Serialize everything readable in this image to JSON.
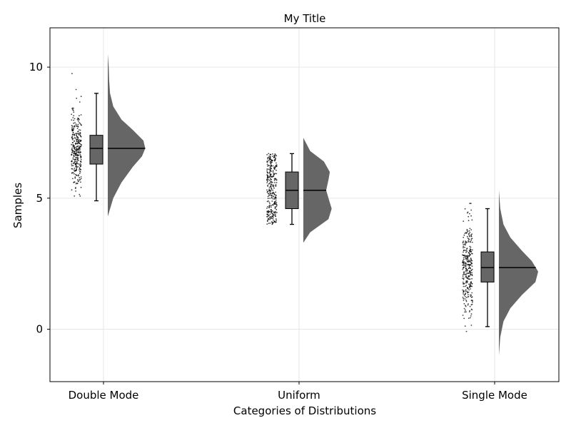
{
  "chart_data": {
    "type": "raincloud",
    "title": "My Title",
    "xlabel": "Categories of Distributions",
    "ylabel": "Samples",
    "categories": [
      "Double Mode",
      "Uniform",
      "Single Mode"
    ],
    "ylim": [
      -2,
      11.5
    ],
    "yticks": [
      0,
      5,
      10
    ],
    "grid": true,
    "colors": {
      "fill": "#666666",
      "points": "#000000",
      "grid": "#e6e6e6",
      "frame": "#000000"
    },
    "boxes": [
      {
        "category": "Double Mode",
        "min": 4.9,
        "q1": 6.3,
        "median": 6.9,
        "q3": 7.4,
        "max": 9.0
      },
      {
        "category": "Uniform",
        "min": 4.0,
        "q1": 4.6,
        "median": 5.3,
        "q3": 6.0,
        "max": 6.7
      },
      {
        "category": "Single Mode",
        "min": 0.1,
        "q1": 1.8,
        "median": 2.35,
        "q3": 2.95,
        "max": 4.6
      }
    ],
    "density": [
      {
        "category": "Double Mode",
        "y": [
          4.3,
          5.0,
          5.6,
          6.2,
          6.6,
          6.9,
          7.2,
          7.6,
          8.0,
          8.5,
          9.0,
          9.5,
          10.0,
          10.5
        ],
        "width": [
          0.0,
          0.12,
          0.3,
          0.55,
          0.75,
          0.82,
          0.78,
          0.55,
          0.3,
          0.12,
          0.05,
          0.03,
          0.02,
          0.0
        ]
      },
      {
        "category": "Uniform",
        "y": [
          3.3,
          3.7,
          4.2,
          4.6,
          5.0,
          5.3,
          5.7,
          6.0,
          6.4,
          6.8,
          7.3
        ],
        "width": [
          0.0,
          0.15,
          0.55,
          0.62,
          0.55,
          0.5,
          0.55,
          0.58,
          0.45,
          0.15,
          0.0
        ]
      },
      {
        "category": "Single Mode",
        "y": [
          -1.0,
          -0.3,
          0.3,
          0.8,
          1.3,
          1.8,
          2.2,
          2.6,
          3.0,
          3.5,
          4.0,
          4.6,
          5.3
        ],
        "width": [
          0.0,
          0.03,
          0.1,
          0.25,
          0.5,
          0.8,
          0.86,
          0.72,
          0.5,
          0.25,
          0.1,
          0.03,
          0.0
        ]
      }
    ],
    "points": [
      {
        "category": "Double Mode",
        "n": 320,
        "mode_center": 6.9,
        "spread": 0.75,
        "ymin": 4.9,
        "ymax": 10.0
      },
      {
        "category": "Uniform",
        "n": 320,
        "ymin": 4.0,
        "ymax": 6.7
      },
      {
        "category": "Single Mode",
        "n": 320,
        "mode_center": 2.3,
        "spread": 0.9,
        "ymin": -0.5,
        "ymax": 4.8
      }
    ]
  }
}
